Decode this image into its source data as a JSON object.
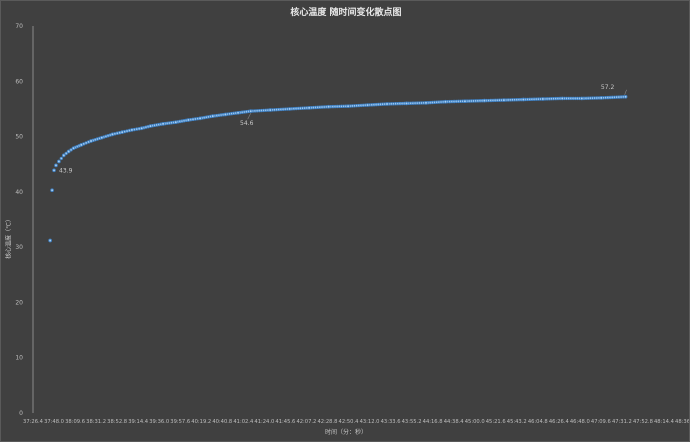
{
  "chart_data": {
    "type": "scatter",
    "title": "核心温度 随时间变化散点图",
    "xlabel": "时间（分：秒）",
    "ylabel": "核心温度（℃）",
    "xlim": [
      "37:26.4",
      "48:36.0"
    ],
    "ylim": [
      0,
      70
    ],
    "x_ticks": [
      "37:26.4",
      "37:48.0",
      "38:09.6",
      "38:31.2",
      "38:52.8",
      "39:14.4",
      "39:36.0",
      "39:57.6",
      "40:19.2",
      "40:40.8",
      "41:02.4",
      "41:24.0",
      "41:45.6",
      "42:07.2",
      "42:28.8",
      "42:50.4",
      "43:12.0",
      "43:33.6",
      "43:55.2",
      "44:16.8",
      "44:38.4",
      "45:00.0",
      "45:21.6",
      "45:43.2",
      "46:04.8",
      "46:26.4",
      "46:48.0",
      "47:09.6",
      "47:31.2",
      "47:52.8",
      "48:14.4",
      "48:36.0"
    ],
    "y_ticks": [
      0,
      10,
      20,
      30,
      40,
      50,
      60,
      70
    ],
    "grid": false,
    "legend": "none",
    "marker_color": "#5b9bd5",
    "series": [
      {
        "x": [
          "37:44.0",
          "37:46.0",
          "37:48.0",
          "37:50.0",
          "37:53.0",
          "37:58.0",
          "38:03.0",
          "38:08.0",
          "38:16.0",
          "38:26.0",
          "38:37.0",
          "38:48.0",
          "38:58.0",
          "39:08.0",
          "39:18.0",
          "39:27.0",
          "39:40.0",
          "39:53.0",
          "40:06.0",
          "40:18.0",
          "40:31.0",
          "40:44.0",
          "40:57.0",
          "41:10.0",
          "41:30.0",
          "41:50.0",
          "42:10.0",
          "42:30.0",
          "42:50.0",
          "43:10.0",
          "43:30.0",
          "43:50.0",
          "44:10.0",
          "44:30.0",
          "44:50.0",
          "45:10.0",
          "45:30.0",
          "45:50.0",
          "46:10.0",
          "46:30.0",
          "46:50.0",
          "47:10.0",
          "47:35.0"
        ],
        "y": [
          31.2,
          40.3,
          43.9,
          44.8,
          45.5,
          46.6,
          47.3,
          47.9,
          48.5,
          49.2,
          49.8,
          50.4,
          50.8,
          51.2,
          51.5,
          51.9,
          52.3,
          52.6,
          53.0,
          53.3,
          53.7,
          54.0,
          54.3,
          54.6,
          54.8,
          55.0,
          55.2,
          55.4,
          55.5,
          55.7,
          55.9,
          56.0,
          56.1,
          56.3,
          56.4,
          56.5,
          56.6,
          56.7,
          56.8,
          56.9,
          56.9,
          57.0,
          57.2
        ]
      }
    ],
    "data_labels": [
      {
        "x": "37:48.0",
        "text": "43.9"
      },
      {
        "x": "41:10.0",
        "text": "54.6"
      },
      {
        "x": "47:35.0",
        "text": "57.2"
      }
    ]
  }
}
